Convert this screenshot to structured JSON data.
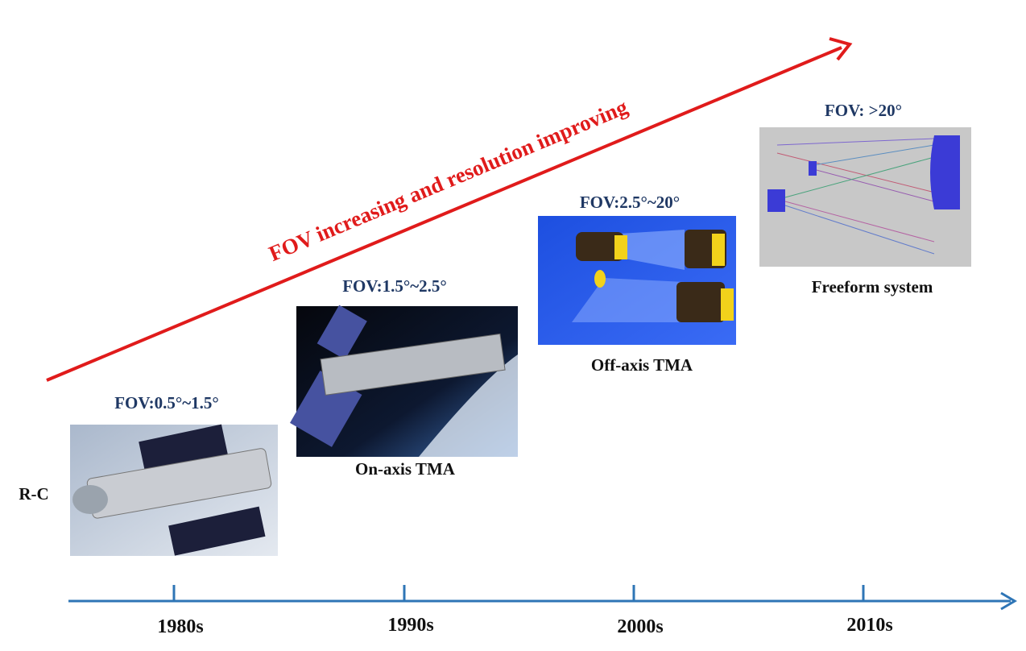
{
  "trend": {
    "label": "FOV increasing and resolution improving"
  },
  "stages": [
    {
      "fov": "FOV:0.5°~1.5°",
      "name": "R-C"
    },
    {
      "fov": "FOV:1.5°~2.5°",
      "name": "On-axis TMA"
    },
    {
      "fov": "FOV:2.5°~20°",
      "name": "Off-axis TMA"
    },
    {
      "fov": "FOV: >20°",
      "name": "Freeform system"
    }
  ],
  "timeline": {
    "decades": [
      "1980s",
      "1990s",
      "2000s",
      "2010s"
    ]
  }
}
